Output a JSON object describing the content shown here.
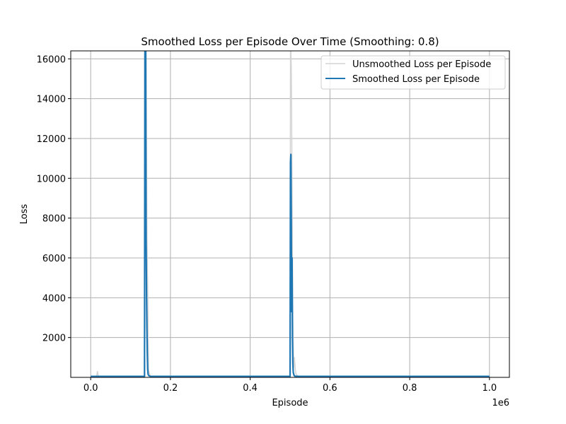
{
  "chart_data": {
    "type": "line",
    "title": "Smoothed Loss per Episode Over Time (Smoothing: 0.8)",
    "xlabel": "Episode",
    "ylabel": "Loss",
    "x_offset_label": "1e6",
    "xlim": [
      -0.05,
      1.05
    ],
    "ylim": [
      0,
      16400
    ],
    "x_ticks": [
      0.0,
      0.2,
      0.4,
      0.6,
      0.8,
      1.0
    ],
    "x_tick_labels": [
      "0.0",
      "0.2",
      "0.4",
      "0.6",
      "0.8",
      "1.0"
    ],
    "y_ticks": [
      2000,
      4000,
      6000,
      8000,
      10000,
      12000,
      14000,
      16000
    ],
    "y_tick_labels": [
      "2000",
      "4000",
      "6000",
      "8000",
      "10000",
      "12000",
      "14000",
      "16000"
    ],
    "grid": true,
    "legend_position": "top-right",
    "series": [
      {
        "name": "Unsmoothed Loss per Episode",
        "color": "#d3d3d3",
        "x": [
          0.0,
          0.015,
          0.017,
          0.019,
          0.021,
          0.05,
          0.1,
          0.135,
          0.137,
          0.139,
          0.141,
          0.143,
          0.145,
          0.147,
          0.15,
          0.2,
          0.3,
          0.4,
          0.5,
          0.501,
          0.502,
          0.503,
          0.504,
          0.505,
          0.507,
          0.509,
          0.511,
          0.513,
          0.515,
          0.52,
          0.6,
          0.7,
          0.8,
          0.9,
          1.0
        ],
        "y": [
          60,
          60,
          300,
          60,
          60,
          50,
          50,
          50,
          16400,
          16400,
          7000,
          4500,
          400,
          200,
          50,
          50,
          50,
          50,
          50,
          16400,
          16400,
          15500,
          13000,
          9000,
          3000,
          500,
          1000,
          400,
          150,
          60,
          50,
          50,
          50,
          50,
          50
        ]
      },
      {
        "name": "Smoothed Loss per Episode",
        "color": "#1f77b4",
        "x": [
          0.0,
          0.05,
          0.1,
          0.135,
          0.136,
          0.137,
          0.138,
          0.139,
          0.14,
          0.141,
          0.142,
          0.143,
          0.144,
          0.146,
          0.15,
          0.2,
          0.3,
          0.4,
          0.5,
          0.501,
          0.502,
          0.503,
          0.504,
          0.505,
          0.506,
          0.507,
          0.508,
          0.51,
          0.512,
          0.52,
          0.6,
          0.7,
          0.8,
          0.9,
          1.0
        ],
        "y": [
          50,
          50,
          50,
          50,
          16400,
          11000,
          16400,
          7000,
          4300,
          2500,
          1200,
          400,
          150,
          80,
          50,
          50,
          50,
          50,
          50,
          10800,
          11200,
          8000,
          3300,
          6000,
          2000,
          700,
          250,
          100,
          60,
          50,
          50,
          50,
          50,
          50,
          50
        ]
      }
    ]
  }
}
